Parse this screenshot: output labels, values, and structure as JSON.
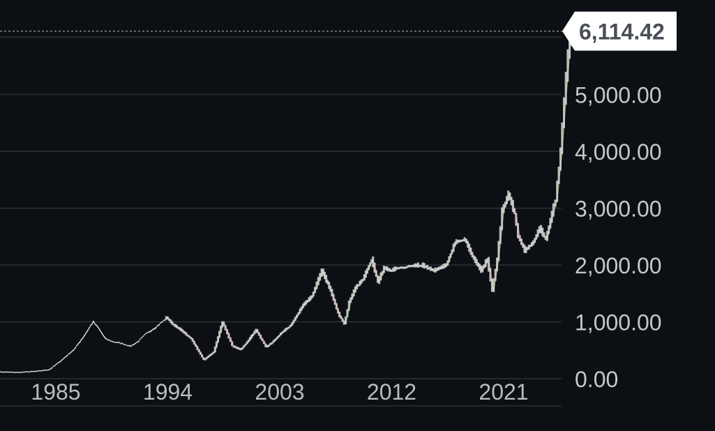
{
  "chart_data": {
    "type": "line",
    "title": "",
    "xlabel": "",
    "ylabel": "",
    "ylim": [
      0,
      6500
    ],
    "y_ticks": [
      "0.00",
      "1,000.00",
      "2,000.00",
      "3,000.00",
      "4,000.00",
      "5,000.00"
    ],
    "y_tick_values": [
      0,
      1000,
      2000,
      3000,
      4000,
      5000
    ],
    "x_ticks": [
      "1985",
      "1994",
      "2003",
      "2012",
      "2021"
    ],
    "x_tick_values": [
      1985,
      1994,
      2003,
      2012,
      2021
    ],
    "last_value_label": "6,114.42",
    "grid": true,
    "colors": {
      "background": "#0c1014",
      "grid": "#2b3036",
      "line_early": "#e8e8e8",
      "candle_up": "#7fc15c",
      "candle_down": "#c25b50",
      "candle_body": "#d9d9d9",
      "label_bg": "#ffffff",
      "label_text": "#4a4f56"
    },
    "series": [
      {
        "x": [
          1980.0,
          1982.0,
          1983.5,
          1984.5,
          1985.5,
          1986.5,
          1987.3,
          1988.0,
          1988.4,
          1989.0,
          1989.6,
          1990.3,
          1991.0,
          1991.6,
          1992.2,
          1993.0,
          1993.5,
          1994.0,
          1994.5,
          1995.2,
          1996.0,
          1997.0,
          1997.8,
          1998.5,
          1999.3,
          2000.0,
          2000.5,
          2001.2,
          2002.0,
          2002.5,
          2003.2,
          2004.0,
          2005.0,
          2005.7,
          2006.5,
          2007.2,
          2007.8,
          2008.3,
          2008.7,
          2009.2,
          2009.8,
          2010.5,
          2011.0,
          2011.5,
          2012.0,
          2012.6,
          2013.5,
          2014.5,
          2015.5,
          2016.5,
          2017.2,
          2018.0,
          2018.6,
          2019.3,
          2019.8,
          2020.2,
          2020.6,
          2021.0,
          2021.5,
          2022.0,
          2022.3,
          2022.8,
          2023.5,
          2024.0,
          2024.5,
          2025.0,
          2025.3,
          2025.7,
          2026.0,
          2026.3,
          2026.5
        ],
        "values": [
          120,
          110,
          130,
          160,
          330,
          520,
          760,
          1000,
          900,
          700,
          650,
          620,
          570,
          650,
          780,
          900,
          990,
          1080,
          960,
          850,
          700,
          330,
          470,
          1000,
          580,
          520,
          650,
          860,
          560,
          640,
          800,
          940,
          1300,
          1450,
          1900,
          1550,
          1150,
          960,
          1350,
          1600,
          1750,
          2100,
          1700,
          1950,
          1900,
          1950,
          1980,
          2000,
          1900,
          2000,
          2400,
          2450,
          2150,
          1900,
          2100,
          1550,
          2100,
          2950,
          3250,
          2900,
          2500,
          2250,
          2400,
          2650,
          2450,
          2900,
          3150,
          4000,
          4900,
          5700,
          6114.42
        ]
      }
    ]
  }
}
